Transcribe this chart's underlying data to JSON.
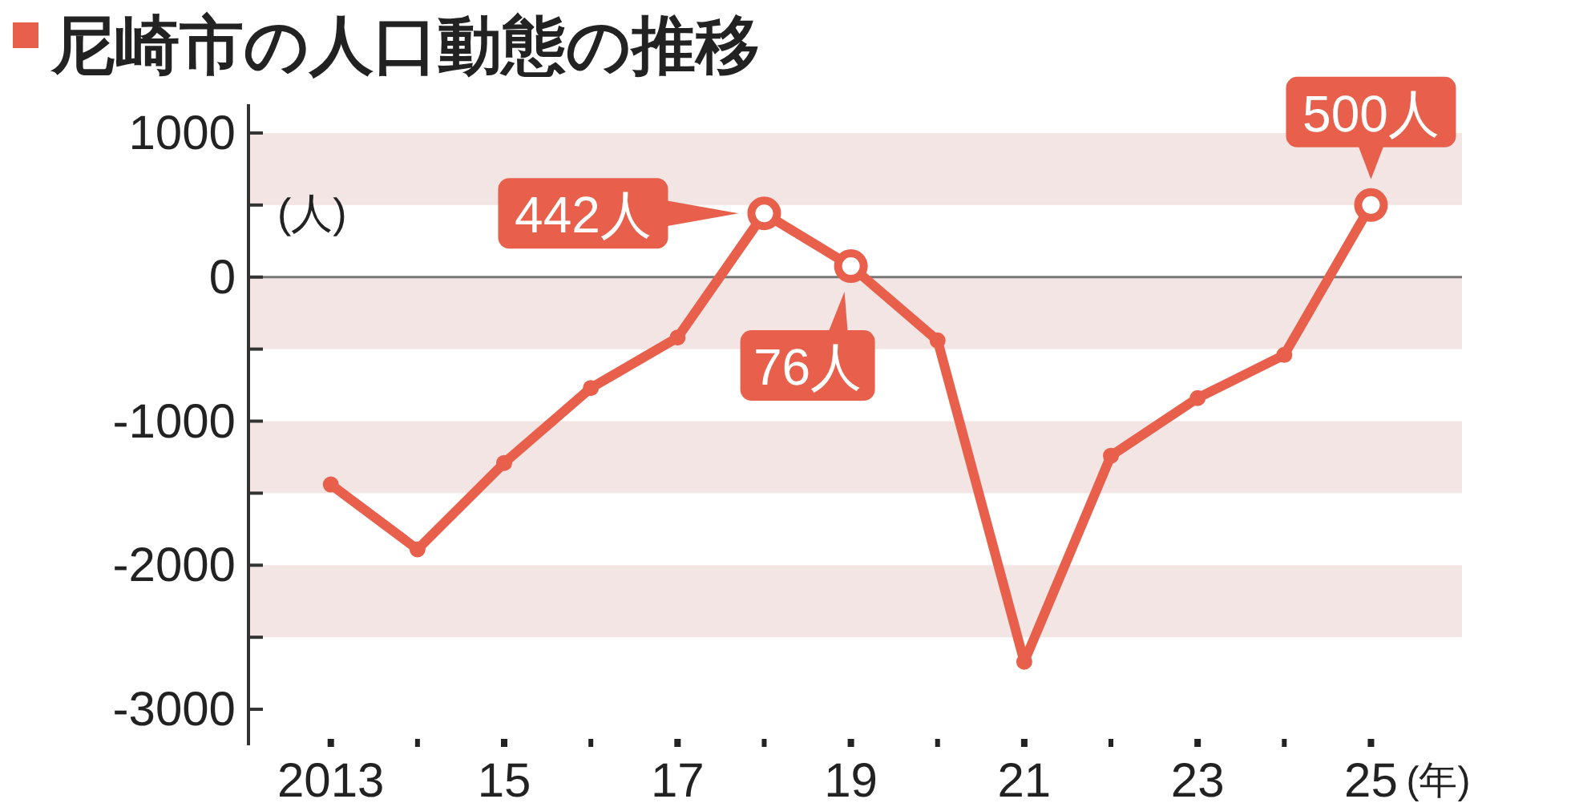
{
  "chart_data": {
    "type": "line",
    "title": "尼崎市の人口動態の推移",
    "x": [
      2013,
      2014,
      2015,
      2016,
      2017,
      2018,
      2019,
      2020,
      2021,
      2022,
      2023,
      2024,
      2025
    ],
    "series": [
      {
        "color": "#e8604c",
        "values": [
          -1440,
          -1890,
          -1290,
          -770,
          -420,
          442,
          76,
          -440,
          -2670,
          -1240,
          -840,
          -540,
          500
        ],
        "value_labels": [
          null,
          null,
          null,
          null,
          null,
          "442人",
          "76人",
          null,
          null,
          null,
          null,
          null,
          "500人"
        ]
      }
    ],
    "xlim": [
      2012.05,
      2026.05
    ],
    "xticks": [
      {
        "value": 2013,
        "label": "2013"
      },
      {
        "value": 2014,
        "label": null
      },
      {
        "value": 2015,
        "label": "15"
      },
      {
        "value": 2016,
        "label": null
      },
      {
        "value": 2017,
        "label": "17"
      },
      {
        "value": 2018,
        "label": null
      },
      {
        "value": 2019,
        "label": "19"
      },
      {
        "value": 2020,
        "label": null
      },
      {
        "value": 2021,
        "label": "21"
      },
      {
        "value": 2022,
        "label": null
      },
      {
        "value": 2023,
        "label": "23"
      },
      {
        "value": 2024,
        "label": null
      },
      {
        "value": 2025,
        "label": "25"
      }
    ],
    "ylim": [
      -3250,
      1200
    ],
    "yticks": [
      1000,
      {
        "value": 500,
        "label": null
      },
      0,
      {
        "value": -500,
        "label": null
      },
      -1000,
      {
        "value": -1500,
        "label": null
      },
      -2000,
      {
        "value": -2500,
        "label": null
      },
      -3000
    ],
    "bands": [
      {
        "axis": "y",
        "from": 500,
        "to": 1000,
        "color": "#f2e5e4"
      },
      {
        "axis": "y",
        "from": -500,
        "to": 0,
        "color": "#f2e5e4"
      },
      {
        "axis": "y",
        "from": -1500,
        "to": -1000,
        "color": "#f2e5e4"
      },
      {
        "axis": "y",
        "from": -2500,
        "to": -2000,
        "color": "#f2e5e4"
      }
    ],
    "ref_lines": [
      {
        "axis": "y",
        "value": 0,
        "color": "#777777"
      }
    ],
    "annotations": [
      "(人)",
      "(年)"
    ],
    "marker": "circle",
    "line_style": "solid"
  }
}
